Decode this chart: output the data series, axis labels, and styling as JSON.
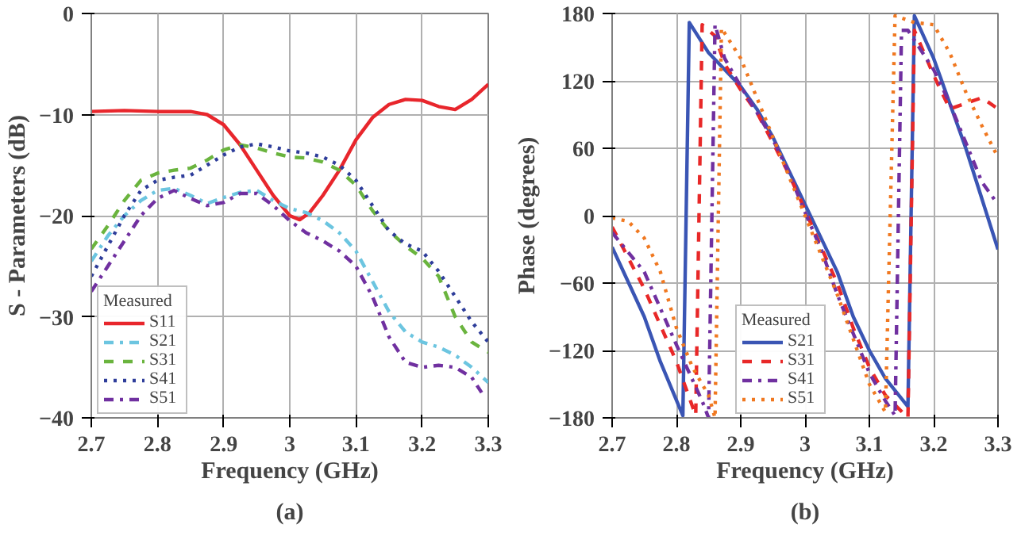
{
  "chart_data": [
    {
      "type": "line",
      "xlabel": "Frequency (GHz)",
      "ylabel": "S - Parameters (dB)",
      "annotations": [
        "(a)"
      ],
      "legend": "bottom left",
      "legend_title": "Measured",
      "grid": true,
      "xlim": [
        2.7,
        3.3
      ],
      "ylim": [
        -40,
        0
      ],
      "xticks": [
        2.7,
        2.8,
        2.9,
        3,
        3.1,
        3.2,
        3.3
      ],
      "yticks": [
        -40,
        -30,
        -20,
        -10,
        0
      ],
      "series": [
        {
          "name": "S11",
          "color": "#e8262c",
          "line_style": "solid",
          "x": [
            2.7,
            2.75,
            2.8,
            2.85,
            2.875,
            2.9,
            2.925,
            2.95,
            2.975,
            3.0,
            3.015,
            3.03,
            3.05,
            3.075,
            3.1,
            3.125,
            3.15,
            3.175,
            3.2,
            3.225,
            3.25,
            3.275,
            3.3
          ],
          "values": [
            -9.7,
            -9.6,
            -9.7,
            -9.7,
            -10,
            -11,
            -13,
            -15.5,
            -18,
            -20,
            -20.4,
            -19.7,
            -18,
            -15.5,
            -12.5,
            -10.3,
            -9,
            -8.5,
            -8.6,
            -9.2,
            -9.5,
            -8.5,
            -7
          ]
        },
        {
          "name": "S21",
          "color": "#6cc5e0",
          "line_style": "dashdot",
          "x": [
            2.7,
            2.725,
            2.75,
            2.775,
            2.8,
            2.825,
            2.85,
            2.875,
            2.9,
            2.925,
            2.95,
            2.975,
            3.0,
            3.025,
            3.05,
            3.075,
            3.1,
            3.125,
            3.15,
            3.175,
            3.2,
            3.225,
            3.25,
            3.275,
            3.3
          ],
          "values": [
            -24.5,
            -22,
            -20,
            -18.5,
            -17.5,
            -17.3,
            -18,
            -18.8,
            -18.2,
            -17.7,
            -17.5,
            -18.5,
            -19.3,
            -19.7,
            -20.5,
            -21.7,
            -23.5,
            -26.5,
            -29.5,
            -31.5,
            -32.5,
            -33,
            -33.8,
            -35,
            -36.5
          ]
        },
        {
          "name": "S31",
          "color": "#6ab43e",
          "line_style": "dashed",
          "x": [
            2.7,
            2.725,
            2.75,
            2.775,
            2.8,
            2.825,
            2.85,
            2.875,
            2.9,
            2.925,
            2.95,
            2.975,
            3.0,
            3.025,
            3.05,
            3.075,
            3.1,
            3.125,
            3.15,
            3.175,
            3.2,
            3.225,
            3.25,
            3.275,
            3.3
          ],
          "values": [
            -23.3,
            -21,
            -18.5,
            -16.5,
            -15.8,
            -15.5,
            -15.3,
            -14.5,
            -13.5,
            -13,
            -13.3,
            -13.8,
            -14.2,
            -14.3,
            -14.7,
            -15.5,
            -17,
            -19.5,
            -21.5,
            -23,
            -24.2,
            -26,
            -30,
            -32.5,
            -33.5
          ]
        },
        {
          "name": "S41",
          "color": "#2e3d9a",
          "line_style": "dotted",
          "x": [
            2.7,
            2.725,
            2.75,
            2.775,
            2.8,
            2.825,
            2.85,
            2.875,
            2.9,
            2.925,
            2.95,
            2.975,
            3.0,
            3.025,
            3.05,
            3.075,
            3.1,
            3.125,
            3.15,
            3.175,
            3.2,
            3.225,
            3.25,
            3.275,
            3.3
          ],
          "values": [
            -26,
            -23,
            -20,
            -17.5,
            -16.5,
            -16.2,
            -16,
            -15,
            -14,
            -13.2,
            -12.9,
            -13.2,
            -13.6,
            -13.8,
            -14.2,
            -15,
            -16.5,
            -19,
            -21.5,
            -22.8,
            -23.5,
            -25.5,
            -28,
            -30.5,
            -32.5
          ]
        },
        {
          "name": "S51",
          "color": "#7030a0",
          "line_style": "dashdot",
          "x": [
            2.7,
            2.725,
            2.75,
            2.775,
            2.8,
            2.825,
            2.85,
            2.875,
            2.9,
            2.925,
            2.95,
            2.975,
            3.0,
            3.025,
            3.05,
            3.075,
            3.1,
            3.125,
            3.15,
            3.175,
            3.2,
            3.225,
            3.25,
            3.275,
            3.29
          ],
          "values": [
            -27.5,
            -25,
            -22.5,
            -20,
            -18.3,
            -17.5,
            -18.3,
            -19,
            -18.7,
            -17.8,
            -17.8,
            -19,
            -20.5,
            -21.7,
            -22.5,
            -23.5,
            -25,
            -28,
            -32,
            -34.5,
            -35,
            -34.8,
            -35,
            -36,
            -37.5
          ]
        }
      ]
    },
    {
      "type": "line",
      "xlabel": "Frequency (GHz)",
      "ylabel": "Phase (degrees)",
      "annotations": [
        "(b)"
      ],
      "legend": "bottom",
      "legend_title": "Measured",
      "grid": true,
      "xlim": [
        2.7,
        3.3
      ],
      "ylim": [
        -180,
        180
      ],
      "xticks": [
        2.7,
        2.8,
        2.9,
        3,
        3.1,
        3.2,
        3.3
      ],
      "yticks": [
        -180,
        -120,
        -60,
        0,
        60,
        120,
        180
      ],
      "series": [
        {
          "name": "S21",
          "color": "#3a55b4",
          "line_style": "solid",
          "x": [
            2.7,
            2.75,
            2.775,
            2.81,
            2.82,
            2.85,
            2.875,
            2.9,
            2.925,
            2.95,
            2.975,
            3.0,
            3.025,
            3.05,
            3.075,
            3.1,
            3.125,
            3.16,
            3.17,
            3.2,
            3.225,
            3.25,
            3.275,
            3.3
          ],
          "values": [
            -28,
            -90,
            -130,
            -178,
            172,
            145,
            130,
            115,
            95,
            70,
            40,
            10,
            -20,
            -50,
            -90,
            -120,
            -145,
            -170,
            178,
            140,
            100,
            60,
            15,
            -30
          ]
        },
        {
          "name": "S31",
          "color": "#e82828",
          "line_style": "dashed",
          "x": [
            2.7,
            2.75,
            2.8,
            2.83,
            2.84,
            2.86,
            2.875,
            2.9,
            2.925,
            2.95,
            2.975,
            3.0,
            3.025,
            3.05,
            3.075,
            3.1,
            3.125,
            3.16,
            3.17,
            3.2,
            3.225,
            3.25,
            3.275,
            3.3
          ],
          "values": [
            -10,
            -65,
            -130,
            -178,
            170,
            160,
            135,
            112,
            92,
            65,
            37,
            5,
            -28,
            -60,
            -100,
            -135,
            -160,
            -180,
            165,
            125,
            95,
            100,
            105,
            95
          ]
        },
        {
          "name": "S41",
          "color": "#7030a0",
          "line_style": "dashdot",
          "x": [
            2.7,
            2.75,
            2.8,
            2.84,
            2.85,
            2.86,
            2.875,
            2.9,
            2.925,
            2.95,
            2.975,
            3.0,
            3.025,
            3.05,
            3.075,
            3.1,
            3.125,
            3.14,
            3.15,
            3.16,
            3.2,
            3.225,
            3.25,
            3.275,
            3.3
          ],
          "values": [
            -15,
            -50,
            -115,
            -165,
            -180,
            170,
            140,
            115,
            92,
            68,
            38,
            3,
            -30,
            -70,
            -105,
            -140,
            -165,
            -178,
            165,
            165,
            130,
            100,
            65,
            30,
            10
          ]
        },
        {
          "name": "S51",
          "color": "#f07820",
          "line_style": "dotted",
          "x": [
            2.7,
            2.725,
            2.75,
            2.775,
            2.8,
            2.825,
            2.85,
            2.86,
            2.87,
            2.9,
            2.925,
            2.95,
            2.975,
            3.0,
            3.025,
            3.05,
            3.075,
            3.1,
            3.125,
            3.14,
            3.17,
            3.2,
            3.225,
            3.25,
            3.275,
            3.3
          ],
          "values": [
            -2,
            -5,
            -20,
            -50,
            -100,
            -135,
            -160,
            -180,
            167,
            140,
            105,
            70,
            35,
            0,
            -35,
            -70,
            -110,
            -150,
            -175,
            178,
            172,
            170,
            145,
            110,
            80,
            52
          ]
        }
      ]
    }
  ]
}
